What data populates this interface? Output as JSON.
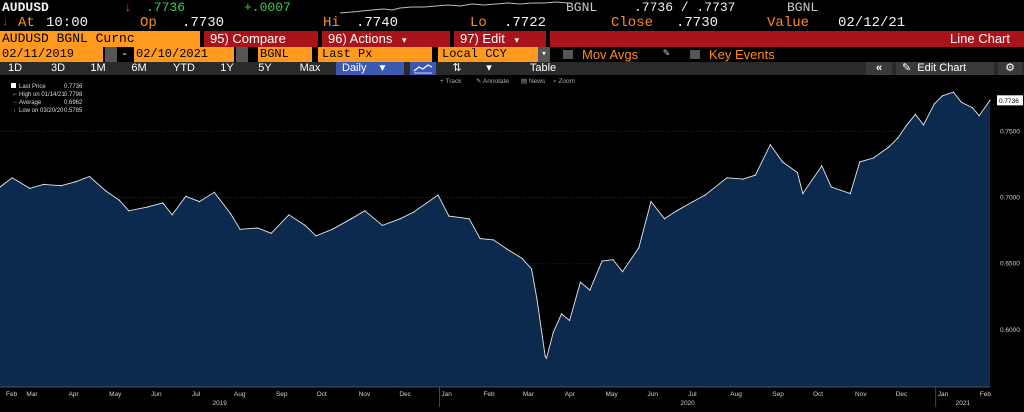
{
  "ticker": {
    "symbol": "AUDUSD",
    "arrow": "↓",
    "last": ".7736",
    "change": "+.0007",
    "source": "BGNL",
    "bid_ask": ".7736 / .7737",
    "source2": "BGNL",
    "at_label": "At",
    "time": "10:00",
    "op_label": "Op",
    "open": ".7730",
    "hi_label": "Hi",
    "high": ".7740",
    "lo_label": "Lo",
    "low": ".7722",
    "close_label": "Close",
    "close": ".7730",
    "value_label": "Value",
    "value_date": "02/12/21"
  },
  "menu": {
    "security": "AUDUSD BGNL Curnc",
    "compare": "95) Compare",
    "actions": "96) Actions",
    "edit": "97) Edit",
    "line_chart": "Line Chart"
  },
  "inputs": {
    "start_date": "02/11/2019",
    "dash": "-",
    "end_date": "02/10/2021",
    "source": "BGNL",
    "field": "Last Px",
    "currency": "Local CCY",
    "mov_avgs": "Mov Avgs",
    "key_events": "Key Events"
  },
  "toolbar": {
    "periods": [
      "1D",
      "3D",
      "1M",
      "6M",
      "YTD",
      "1Y",
      "5Y",
      "Max"
    ],
    "frequency": "Daily",
    "table": "Table",
    "edit_chart": "Edit Chart",
    "collapse": "«"
  },
  "subtools": {
    "track": "Track",
    "annotate": "Annotate",
    "news": "News",
    "zoom": "Zoom"
  },
  "legend": {
    "last_price_label": "Last Price",
    "last_price": "0.7736",
    "high_label": "High on 01/14/21",
    "high": "0.7798",
    "average_label": "Average",
    "average": "0.6962",
    "low_label": "Low on 03/20/20",
    "low": "0.5785"
  },
  "colors": {
    "amber": "#ff8c1a",
    "green": "#31d24a",
    "red_bar": "#a9141b",
    "orange_input": "#ff9a1f",
    "area_fill": "#0b2a4e",
    "line": "#e8e8e8"
  },
  "chart_data": {
    "type": "area",
    "title": "",
    "xlabel": "",
    "ylabel": "",
    "ylim": [
      0.5567,
      0.7852
    ],
    "yticks": [
      "0.6000",
      "0.6500",
      "0.7000",
      "0.7500"
    ],
    "ytick_values": [
      0.6,
      0.65,
      0.7,
      0.75
    ],
    "last_label": "0.7736",
    "months": [
      "Feb",
      "Mar",
      "Apr",
      "May",
      "Jun",
      "Jul",
      "Aug",
      "Sep",
      "Oct",
      "Nov",
      "Dec",
      "Jan",
      "Feb",
      "Mar",
      "Apr",
      "May",
      "Jun",
      "Jul",
      "Aug",
      "Sep",
      "Oct",
      "Nov",
      "Dec",
      "Jan",
      "Feb"
    ],
    "years": [
      "2019",
      "2020",
      "2021"
    ],
    "x_start": "2019-02-11",
    "x_end": "2021-02-10",
    "series": [
      {
        "values": [
          [
            "2019-02-11",
            0.708
          ],
          [
            "2019-02-20",
            0.715
          ],
          [
            "2019-03-05",
            0.707
          ],
          [
            "2019-03-15",
            0.71
          ],
          [
            "2019-03-28",
            0.709
          ],
          [
            "2019-04-08",
            0.712
          ],
          [
            "2019-04-18",
            0.716
          ],
          [
            "2019-04-30",
            0.705
          ],
          [
            "2019-05-10",
            0.698
          ],
          [
            "2019-05-17",
            0.69
          ],
          [
            "2019-05-31",
            0.693
          ],
          [
            "2019-06-11",
            0.696
          ],
          [
            "2019-06-18",
            0.687
          ],
          [
            "2019-06-28",
            0.701
          ],
          [
            "2019-07-08",
            0.697
          ],
          [
            "2019-07-19",
            0.704
          ],
          [
            "2019-07-31",
            0.688
          ],
          [
            "2019-08-07",
            0.676
          ],
          [
            "2019-08-20",
            0.677
          ],
          [
            "2019-08-30",
            0.673
          ],
          [
            "2019-09-12",
            0.687
          ],
          [
            "2019-09-24",
            0.679
          ],
          [
            "2019-10-02",
            0.671
          ],
          [
            "2019-10-14",
            0.676
          ],
          [
            "2019-10-28",
            0.684
          ],
          [
            "2019-11-07",
            0.69
          ],
          [
            "2019-11-20",
            0.679
          ],
          [
            "2019-12-03",
            0.684
          ],
          [
            "2019-12-13",
            0.689
          ],
          [
            "2019-12-31",
            0.702
          ],
          [
            "2020-01-08",
            0.686
          ],
          [
            "2020-01-23",
            0.684
          ],
          [
            "2020-01-31",
            0.669
          ],
          [
            "2020-02-10",
            0.668
          ],
          [
            "2020-02-20",
            0.661
          ],
          [
            "2020-03-02",
            0.654
          ],
          [
            "2020-03-09",
            0.646
          ],
          [
            "2020-03-13",
            0.623
          ],
          [
            "2020-03-19",
            0.58
          ],
          [
            "2020-03-20",
            0.5785
          ],
          [
            "2020-03-25",
            0.598
          ],
          [
            "2020-03-31",
            0.612
          ],
          [
            "2020-04-06",
            0.607
          ],
          [
            "2020-04-14",
            0.636
          ],
          [
            "2020-04-21",
            0.63
          ],
          [
            "2020-04-30",
            0.652
          ],
          [
            "2020-05-08",
            0.653
          ],
          [
            "2020-05-15",
            0.644
          ],
          [
            "2020-05-27",
            0.662
          ],
          [
            "2020-06-05",
            0.697
          ],
          [
            "2020-06-15",
            0.684
          ],
          [
            "2020-06-24",
            0.69
          ],
          [
            "2020-07-06",
            0.697
          ],
          [
            "2020-07-15",
            0.702
          ],
          [
            "2020-07-31",
            0.715
          ],
          [
            "2020-08-12",
            0.714
          ],
          [
            "2020-08-21",
            0.717
          ],
          [
            "2020-09-01",
            0.74
          ],
          [
            "2020-09-10",
            0.727
          ],
          [
            "2020-09-21",
            0.719
          ],
          [
            "2020-09-25",
            0.703
          ],
          [
            "2020-10-09",
            0.724
          ],
          [
            "2020-10-16",
            0.708
          ],
          [
            "2020-10-30",
            0.703
          ],
          [
            "2020-11-06",
            0.727
          ],
          [
            "2020-11-16",
            0.73
          ],
          [
            "2020-11-27",
            0.738
          ],
          [
            "2020-12-04",
            0.745
          ],
          [
            "2020-12-10",
            0.754
          ],
          [
            "2020-12-17",
            0.763
          ],
          [
            "2020-12-23",
            0.755
          ],
          [
            "2020-12-31",
            0.771
          ],
          [
            "2021-01-06",
            0.777
          ],
          [
            "2021-01-14",
            0.7798
          ],
          [
            "2021-01-20",
            0.772
          ],
          [
            "2021-01-28",
            0.768
          ],
          [
            "2021-02-02",
            0.762
          ],
          [
            "2021-02-10",
            0.7736
          ]
        ]
      }
    ]
  }
}
